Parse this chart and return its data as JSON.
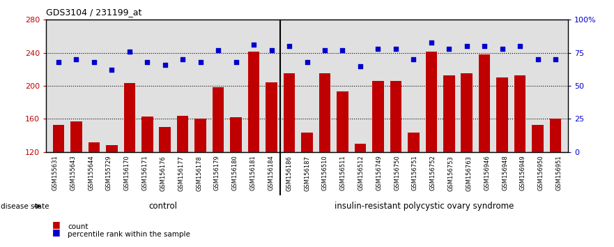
{
  "title": "GDS3104 / 231199_at",
  "samples": [
    "GSM155631",
    "GSM155643",
    "GSM155644",
    "GSM155729",
    "GSM156170",
    "GSM156171",
    "GSM156176",
    "GSM156177",
    "GSM156178",
    "GSM156179",
    "GSM156180",
    "GSM156181",
    "GSM156184",
    "GSM156186",
    "GSM156187",
    "GSM156510",
    "GSM156511",
    "GSM156512",
    "GSM156749",
    "GSM156750",
    "GSM156751",
    "GSM156752",
    "GSM156753",
    "GSM156763",
    "GSM156946",
    "GSM156948",
    "GSM156949",
    "GSM156950",
    "GSM156951"
  ],
  "bar_values": [
    153,
    157,
    132,
    128,
    203,
    163,
    150,
    164,
    160,
    198,
    162,
    241,
    204,
    215,
    143,
    215,
    193,
    130,
    206,
    206,
    143,
    241,
    213,
    215,
    238,
    210,
    213,
    153,
    160
  ],
  "dot_values": [
    68,
    70,
    68,
    62,
    76,
    68,
    66,
    70,
    68,
    77,
    68,
    81,
    77,
    80,
    68,
    77,
    77,
    65,
    78,
    78,
    70,
    83,
    78,
    80,
    80,
    78,
    80,
    70,
    70
  ],
  "n_control": 13,
  "ymin": 120,
  "ymax": 280,
  "yticks_left": [
    120,
    160,
    200,
    240,
    280
  ],
  "yticks_right": [
    0,
    25,
    50,
    75,
    100
  ],
  "bar_color": "#c00000",
  "dot_color": "#0000cc",
  "control_color": "#ccffcc",
  "pcos_color": "#44cc44",
  "plot_bg_color": "#e0e0e0",
  "tick_bg_color": "#d0d0d0",
  "control_label": "control",
  "pcos_label": "insulin-resistant polycystic ovary syndrome",
  "disease_label": "disease state",
  "legend_bar": "count",
  "legend_dot": "percentile rank within the sample"
}
